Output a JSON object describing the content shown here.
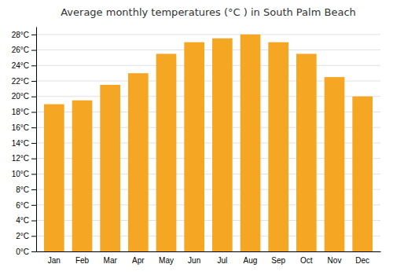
{
  "chart_data": {
    "type": "bar",
    "title": "Average monthly temperatures (°C ) in South Palm Beach",
    "categories": [
      "Jan",
      "Feb",
      "Mar",
      "Apr",
      "May",
      "Jun",
      "Jul",
      "Aug",
      "Sep",
      "Oct",
      "Nov",
      "Dec"
    ],
    "values": [
      19,
      19.5,
      21.5,
      23,
      25.5,
      27,
      27.5,
      28,
      27,
      25.5,
      22.5,
      20
    ],
    "color": "#F5A623",
    "ylim": [
      0,
      29
    ],
    "yticks": [
      {
        "value": 0,
        "label": "0°C"
      },
      {
        "value": 2,
        "label": "2°C"
      },
      {
        "value": 4,
        "label": "4°C"
      },
      {
        "value": 6,
        "label": "6°C"
      },
      {
        "value": 8,
        "label": "8°C"
      },
      {
        "value": 10,
        "label": "10°C"
      },
      {
        "value": 12,
        "label": "12°C"
      },
      {
        "value": 14,
        "label": "14°C"
      },
      {
        "value": 16,
        "label": "16°C"
      },
      {
        "value": 18,
        "label": "18°C"
      },
      {
        "value": 20,
        "label": "20°C"
      },
      {
        "value": 22,
        "label": "22°C"
      },
      {
        "value": 24,
        "label": "24°C"
      },
      {
        "value": 26,
        "label": "26°C"
      },
      {
        "value": 28,
        "label": "28°C"
      }
    ],
    "grid": true
  }
}
